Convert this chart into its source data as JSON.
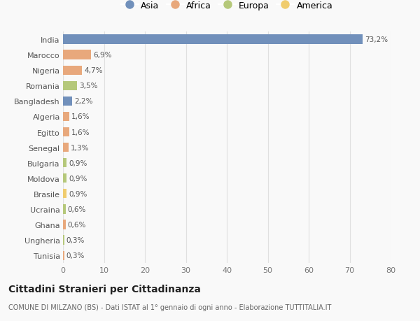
{
  "countries": [
    "India",
    "Marocco",
    "Nigeria",
    "Romania",
    "Bangladesh",
    "Algeria",
    "Egitto",
    "Senegal",
    "Bulgaria",
    "Moldova",
    "Brasile",
    "Ucraina",
    "Ghana",
    "Ungheria",
    "Tunisia"
  ],
  "values": [
    73.2,
    6.9,
    4.7,
    3.5,
    2.2,
    1.6,
    1.6,
    1.3,
    0.9,
    0.9,
    0.9,
    0.6,
    0.6,
    0.3,
    0.3
  ],
  "labels": [
    "73,2%",
    "6,9%",
    "4,7%",
    "3,5%",
    "2,2%",
    "1,6%",
    "1,6%",
    "1,3%",
    "0,9%",
    "0,9%",
    "0,9%",
    "0,6%",
    "0,6%",
    "0,3%",
    "0,3%"
  ],
  "continents": [
    "Asia",
    "Africa",
    "Africa",
    "Europa",
    "Asia",
    "Africa",
    "Africa",
    "Africa",
    "Europa",
    "Europa",
    "America",
    "Europa",
    "Africa",
    "Europa",
    "Africa"
  ],
  "continent_colors": {
    "Asia": "#7190bb",
    "Africa": "#e8a87c",
    "Europa": "#b5c87a",
    "America": "#f0cc6e"
  },
  "legend_order": [
    "Asia",
    "Africa",
    "Europa",
    "America"
  ],
  "title": "Cittadini Stranieri per Cittadinanza",
  "subtitle": "COMUNE DI MILZANO (BS) - Dati ISTAT al 1° gennaio di ogni anno - Elaborazione TUTTITALIA.IT",
  "xlim": [
    0,
    80
  ],
  "xticks": [
    0,
    10,
    20,
    30,
    40,
    50,
    60,
    70,
    80
  ],
  "background_color": "#f9f9f9",
  "grid_color": "#e0e0e0",
  "bar_height": 0.6
}
